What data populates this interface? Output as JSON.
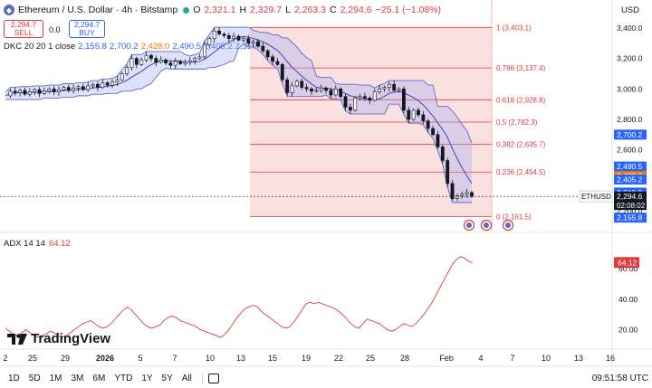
{
  "header": {
    "symbol": "Ethereum / U.S. Dollar · 4h · Bitstamp",
    "o_label": "O",
    "o": "2,321.1",
    "h_label": "H",
    "h": "2,329.7",
    "l_label": "L",
    "l": "2,263.3",
    "c_label": "C",
    "c": "2,294.6",
    "change": "−25.1 (−1.08%)"
  },
  "trade": {
    "sell_price": "2,294.7",
    "sell_label": "SELL",
    "spread": "0.0",
    "buy_price": "2,294.7",
    "buy_label": "BUY"
  },
  "dkc": {
    "name": "DKC 20 20 1 close",
    "v1": "2,155.8",
    "v2": "2,700.2",
    "v3": "2,428.0",
    "v4": "2,490.5",
    "v5": "2,405.2",
    "v6": "2,319.9"
  },
  "adx": {
    "name": "ADX 14 14",
    "value": "64.12"
  },
  "currency": "USD",
  "symbol_tag": "ETHUSD",
  "last_price": "2,294.6",
  "countdown": "02:08:02",
  "brand": "TradingView",
  "colors": {
    "up": "#22ab94",
    "down": "#e03a3e",
    "band": "#2962ff",
    "fib": "#e03a3e",
    "adx": "#e03a3e"
  },
  "timeframes": [
    "1D",
    "5D",
    "1M",
    "3M",
    "6M",
    "YTD",
    "1Y",
    "5Y",
    "All"
  ],
  "clock": "09:51:58 UTC",
  "chart_data": [
    {
      "type": "candlestick",
      "title": "Ethereum / U.S. Dollar · 4h · Bitstamp",
      "ylabel": "USD",
      "ylim": [
        2100,
        3500
      ],
      "y_ticks": [
        2200,
        2400,
        2600,
        2800,
        3000,
        3200,
        3400
      ],
      "y_tick_labels": [
        "2,200.0",
        "2,400.0",
        "2,600.0",
        "2,800.0",
        "3,000.0",
        "3,200.0",
        "3,400.0"
      ],
      "x_tick_labels": [
        "2",
        "25",
        "29",
        "2026",
        "5",
        "7",
        "10",
        "13",
        "15",
        "19",
        "22",
        "25",
        "28",
        "Feb",
        "4",
        "7",
        "10",
        "13",
        "16"
      ],
      "close_path": [
        2955,
        2985,
        2975,
        2990,
        2965,
        2980,
        2995,
        2970,
        2985,
        3000,
        2980,
        2995,
        3010,
        2990,
        3005,
        3015,
        2995,
        3020,
        3030,
        3010,
        3040,
        3025,
        3045,
        3060,
        3100,
        3140,
        3200,
        3160,
        3190,
        3220,
        3200,
        3175,
        3190,
        3170,
        3155,
        3180,
        3165,
        3175,
        3185,
        3200,
        3210,
        3290,
        3330,
        3380,
        3360,
        3350,
        3330,
        3345,
        3320,
        3330,
        3300,
        3310,
        3280,
        3250,
        3210,
        3180,
        3160,
        3060,
        2975,
        3020,
        3050,
        3010,
        3000,
        2985,
        2990,
        3005,
        2990,
        2960,
        3000,
        2950,
        2880,
        2860,
        2940,
        2950,
        2940,
        2925,
        2980,
        3000,
        3010,
        3030,
        2990,
        3000,
        2860,
        2800,
        2860,
        2830,
        2790,
        2740,
        2700,
        2620,
        2530,
        2380,
        2280,
        2300,
        2310,
        2320,
        2294.6
      ],
      "fib_levels": [
        {
          "ratio": "1",
          "price": "3,403.1",
          "value": 3403.1
        },
        {
          "ratio": "0.786",
          "price": "3,137.4",
          "value": 3137.4
        },
        {
          "ratio": "0.618",
          "price": "2,928.8",
          "value": 2928.8
        },
        {
          "ratio": "0.5",
          "price": "2,782.3",
          "value": 2782.3
        },
        {
          "ratio": "0.382",
          "price": "2,635.7",
          "value": 2635.7
        },
        {
          "ratio": "0.236",
          "price": "2,454.5",
          "value": 2454.5
        },
        {
          "ratio": "0",
          "price": "2,161.5",
          "value": 2161.5
        }
      ],
      "price_tags": [
        {
          "label": "2,700.2",
          "value": 2700.2,
          "color": "#2962ff"
        },
        {
          "label": "2,490.5",
          "value": 2490.5,
          "color": "#2962ff"
        },
        {
          "label": "2,428.0",
          "value": 2428.0,
          "color": "#f57c00"
        },
        {
          "label": "2,405.2",
          "value": 2405.2,
          "color": "#2962ff"
        },
        {
          "label": "2,319.9",
          "value": 2319.9,
          "color": "#2962ff"
        },
        {
          "label": "2,294.6",
          "value": 2294.6,
          "color": "#131722"
        },
        {
          "label": "2,155.8",
          "value": 2155.8,
          "color": "#2962ff"
        }
      ]
    },
    {
      "type": "line",
      "title": "ADX 14 14",
      "ylim": [
        12,
        75
      ],
      "y_ticks": [
        20,
        40,
        60
      ],
      "y_tick_labels": [
        "20.00",
        "40.00",
        "60.00"
      ],
      "values": [
        21,
        19,
        17,
        16,
        18,
        20,
        18,
        16,
        15,
        16,
        17,
        19,
        18,
        16,
        15,
        16,
        18,
        20,
        22,
        24,
        25,
        26,
        24,
        22,
        21,
        22,
        24,
        27,
        30,
        33,
        35,
        33,
        30,
        27,
        24,
        22,
        21,
        22,
        23,
        26,
        28,
        29,
        28,
        26,
        25,
        24,
        23,
        22,
        20,
        19,
        18,
        17,
        16,
        15,
        17,
        20,
        24,
        28,
        31,
        34,
        35,
        36,
        35,
        32,
        30,
        28,
        26,
        24,
        22,
        21,
        22,
        25,
        29,
        33,
        37,
        38,
        37,
        38,
        37,
        36,
        35,
        34,
        32,
        30,
        27,
        24,
        22,
        21,
        24,
        27,
        26,
        25,
        24,
        22,
        20,
        19,
        20,
        22,
        24,
        23,
        22,
        24,
        27,
        30,
        34,
        38,
        43,
        48,
        53,
        58,
        63,
        66,
        68,
        67,
        65,
        64.12
      ]
    }
  ]
}
